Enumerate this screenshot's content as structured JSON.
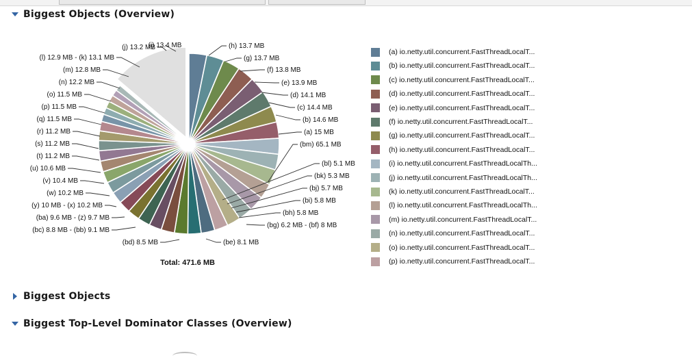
{
  "sections": {
    "overview": {
      "title": "Biggest Objects (Overview)",
      "state": "expanded"
    },
    "objects": {
      "title": "Biggest Objects",
      "state": "collapsed"
    },
    "dominators": {
      "title": "Biggest Top-Level Dominator Classes (Overview)",
      "state": "expanded"
    }
  },
  "chart_data": {
    "type": "pie",
    "total_label": "Total: 471.6 MB",
    "unit": "MB",
    "colors": {
      "a": "#5f7d95",
      "b": "#5e8d95",
      "c": "#6e8a4c",
      "d": "#8e5e52",
      "e": "#7a5e72",
      "f": "#5e7a6c",
      "g": "#8e8a4e",
      "h": "#955e6a",
      "i": "#a4b6c2",
      "j": "#9db2b4",
      "k": "#a7b88f",
      "l": "#b4a094",
      "m": "#a898a8",
      "n": "#9aaaa6",
      "o": "#b4ae88",
      "p": "#bca0a2",
      "q": "#4e6c80",
      "r": "#276e72",
      "s": "#5b7a2e",
      "t": "#7a4e3e",
      "u": "#684e62",
      "v": "#3e6452",
      "w": "#7a7230",
      "x": "#864a58",
      "y": "#8aa0b4",
      "z": "#7c9a9e",
      "ba": "#8aa66a",
      "bb": "#a48670",
      "bc": "#927892",
      "bd": "#7a928e",
      "be": "#a49a6c",
      "bf": "#b4888e",
      "bg": "#7894a8",
      "bh": "#8eacb0",
      "bi": "#9cb07c",
      "bj": "#bfa39a",
      "bk": "#b2a0b6",
      "bl": "#a8b8b6",
      "bm": "#e0e0e0"
    },
    "slices": [
      {
        "id": "a",
        "label": "(a)",
        "value": 15.0,
        "display": "15 MB"
      },
      {
        "id": "b",
        "label": "(b)",
        "value": 14.6,
        "display": "14.6 MB"
      },
      {
        "id": "c",
        "label": "(c)",
        "value": 14.4,
        "display": "14.4 MB"
      },
      {
        "id": "d",
        "label": "(d)",
        "value": 14.1,
        "display": "14.1 MB"
      },
      {
        "id": "e",
        "label": "(e)",
        "value": 13.9,
        "display": "13.9 MB"
      },
      {
        "id": "f",
        "label": "(f)",
        "value": 13.8,
        "display": "13.8 MB"
      },
      {
        "id": "g",
        "label": "(g)",
        "value": 13.7,
        "display": "13.7 MB"
      },
      {
        "id": "h",
        "label": "(h)",
        "value": 13.7,
        "display": "13.7 MB"
      },
      {
        "id": "i",
        "label": "(i)",
        "value": 13.4
      },
      {
        "id": "j",
        "label": "(j)",
        "value": 13.2,
        "display": "13.2 MB"
      },
      {
        "id": "k",
        "label": "(k)",
        "value": 13.1,
        "display": "13.1 MB"
      },
      {
        "id": "l",
        "label": "(l)",
        "value": 12.9,
        "display": "12.9 MB"
      },
      {
        "id": "m",
        "label": "(m)",
        "value": 12.8,
        "display": "12.8 MB"
      },
      {
        "id": "n",
        "label": "(n)",
        "value": 12.2,
        "display": "12.2 MB"
      },
      {
        "id": "o",
        "label": "(o)",
        "value": 11.5,
        "display": "11.5 MB"
      },
      {
        "id": "p",
        "label": "(p)",
        "value": 11.5,
        "display": "11.5 MB"
      },
      {
        "id": "q",
        "label": "(q)",
        "value": 11.5,
        "display": "11.5 MB"
      },
      {
        "id": "r",
        "label": "(r)",
        "value": 11.2,
        "display": "11.2 MB"
      },
      {
        "id": "s",
        "label": "(s)",
        "value": 11.2,
        "display": "11.2 MB"
      },
      {
        "id": "t",
        "label": "(t)",
        "value": 11.2,
        "display": "11.2 MB"
      },
      {
        "id": "u",
        "label": "(u)",
        "value": 10.6,
        "display": "10.6 MB"
      },
      {
        "id": "v",
        "label": "(v)",
        "value": 10.4,
        "display": "10.4 MB"
      },
      {
        "id": "w",
        "label": "(w)",
        "value": 10.2,
        "display": "10.2 MB"
      },
      {
        "id": "x",
        "label": "(x)",
        "value": 10.2,
        "display": "10.2 MB"
      },
      {
        "id": "y",
        "label": "(y)",
        "value": 10.0,
        "display": "10 MB"
      },
      {
        "id": "z",
        "label": "(z)",
        "value": 9.7,
        "display": "9.7 MB"
      },
      {
        "id": "ba",
        "label": "(ba)",
        "value": 9.6,
        "display": "9.6 MB"
      },
      {
        "id": "bb",
        "label": "(bb)",
        "value": 9.1,
        "display": "9.1 MB"
      },
      {
        "id": "bc",
        "label": "(bc)",
        "value": 8.8,
        "display": "8.8 MB"
      },
      {
        "id": "bd",
        "label": "(bd)",
        "value": 8.5,
        "display": "8.5 MB"
      },
      {
        "id": "be",
        "label": "(be)",
        "value": 8.1,
        "display": "8.1 MB"
      },
      {
        "id": "bf",
        "label": "(bf)",
        "value": 8.0,
        "display": "8 MB"
      },
      {
        "id": "bg",
        "label": "(bg)",
        "value": 6.2,
        "display": "6.2 MB"
      },
      {
        "id": "bh",
        "label": "(bh)",
        "value": 5.8,
        "display": "5.8 MB"
      },
      {
        "id": "bi",
        "label": "(bi)",
        "value": 5.8,
        "display": "5.8 MB"
      },
      {
        "id": "bj",
        "label": "(bj)",
        "value": 5.7,
        "display": "5.7 MB"
      },
      {
        "id": "bk",
        "label": "(bk)",
        "value": 5.3,
        "display": "5.3 MB"
      },
      {
        "id": "bl",
        "label": "(bl)",
        "value": 5.1,
        "display": "5.1 MB"
      },
      {
        "id": "bm",
        "label": "(bm)",
        "value": 65.1,
        "display": "65.1 MB",
        "exploded": true
      }
    ],
    "callouts": [
      {
        "text": "(a)  15 MB"
      },
      {
        "text": "(b)  14.6 MB"
      },
      {
        "text": "(c)  14.4 MB"
      },
      {
        "text": "(d)  14.1 MB"
      },
      {
        "text": "(e)  13.9 MB"
      },
      {
        "text": "(f)  13.8 MB"
      },
      {
        "text": "(g)  13.7 MB"
      },
      {
        "text": "(h)  13.7 MB"
      },
      {
        "text": "(i)  13.4 MB"
      },
      {
        "text": "(j)  13.2 MB"
      },
      {
        "text": "(l)  12.9 MB - (k)  13.1 MB"
      },
      {
        "text": "(m)  12.8 MB"
      },
      {
        "text": "(n)  12.2 MB"
      },
      {
        "text": "(o)  11.5 MB"
      },
      {
        "text": "(p)  11.5 MB"
      },
      {
        "text": "(q)  11.5 MB"
      },
      {
        "text": "(r)  11.2 MB"
      },
      {
        "text": "(s)  11.2 MB"
      },
      {
        "text": "(t)  11.2 MB"
      },
      {
        "text": "(u)  10.6 MB"
      },
      {
        "text": "(v)  10.4 MB"
      },
      {
        "text": "(w)  10.2 MB"
      },
      {
        "text": "(y)  10 MB - (x)  10.2 MB"
      },
      {
        "text": "(ba)  9.6 MB - (z)  9.7 MB"
      },
      {
        "text": "(bc)  8.8 MB - (bb)  9.1 MB"
      },
      {
        "text": "(bd)  8.5 MB"
      },
      {
        "text": "(be)  8.1 MB"
      },
      {
        "text": "(bg)  6.2 MB - (bf)  8 MB"
      },
      {
        "text": "(bh)  5.8 MB"
      },
      {
        "text": "(bi)  5.8 MB"
      },
      {
        "text": "(bj)  5.7 MB"
      },
      {
        "text": "(bk)  5.3 MB"
      },
      {
        "text": "(bl)  5.1 MB"
      },
      {
        "text": "(bm)  65.1 MB"
      }
    ]
  },
  "legend": [
    {
      "id": "a",
      "text": "(a)  io.netty.util.concurrent.FastThreadLocalT..."
    },
    {
      "id": "b",
      "text": "(b)  io.netty.util.concurrent.FastThreadLocalT..."
    },
    {
      "id": "c",
      "text": "(c)  io.netty.util.concurrent.FastThreadLocalT..."
    },
    {
      "id": "d",
      "text": "(d)  io.netty.util.concurrent.FastThreadLocalT..."
    },
    {
      "id": "e",
      "text": "(e)  io.netty.util.concurrent.FastThreadLocalT..."
    },
    {
      "id": "f",
      "text": "(f)  io.netty.util.concurrent.FastThreadLocalT..."
    },
    {
      "id": "g",
      "text": "(g)  io.netty.util.concurrent.FastThreadLocalT..."
    },
    {
      "id": "h",
      "text": "(h)  io.netty.util.concurrent.FastThreadLocalT..."
    },
    {
      "id": "i",
      "text": "(i)  io.netty.util.concurrent.FastThreadLocalTh..."
    },
    {
      "id": "j",
      "text": "(j)  io.netty.util.concurrent.FastThreadLocalTh..."
    },
    {
      "id": "k",
      "text": "(k)  io.netty.util.concurrent.FastThreadLocalT..."
    },
    {
      "id": "l",
      "text": "(l)  io.netty.util.concurrent.FastThreadLocalTh..."
    },
    {
      "id": "m",
      "text": "(m)  io.netty.util.concurrent.FastThreadLocalT..."
    },
    {
      "id": "n",
      "text": "(n)  io.netty.util.concurrent.FastThreadLocalT..."
    },
    {
      "id": "o",
      "text": "(o)  io.netty.util.concurrent.FastThreadLocalT..."
    },
    {
      "id": "p",
      "text": "(p)  io.netty.util.concurrent.FastThreadLocalT..."
    }
  ]
}
